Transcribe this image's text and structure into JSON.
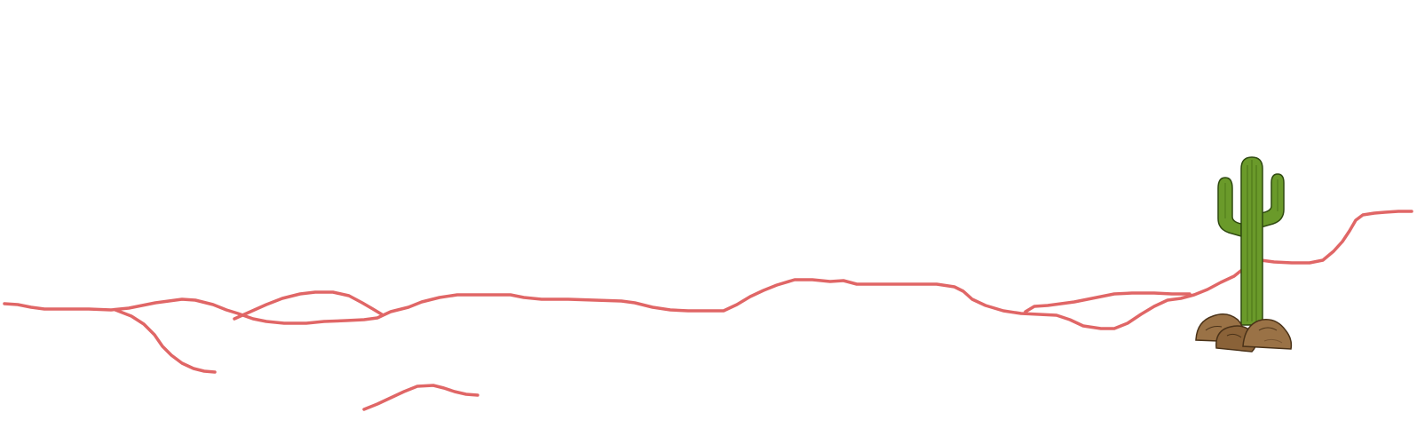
{
  "scene": {
    "background_color": "#ffffff",
    "ground_line_color": "#e06666",
    "objects": [
      {
        "type": "cactus",
        "icon": "saguaro-cactus-icon"
      },
      {
        "type": "rocks",
        "icon": "rock-pile-icon"
      }
    ],
    "cactus_colors": {
      "body": "#6a9a2a",
      "shade": "#4f7a1a",
      "outline": "#2f4a10"
    },
    "rock_colors": {
      "fill": "#9a7246",
      "shade": "#7a5632",
      "outline": "#4a3218"
    }
  }
}
